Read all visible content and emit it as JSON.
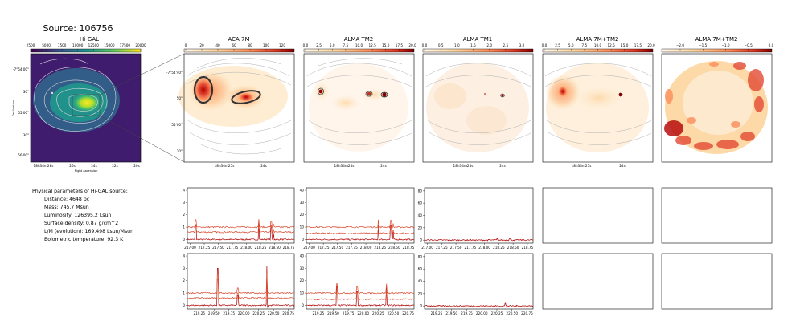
{
  "title": "Source: 106756",
  "maps": [
    {
      "title": "Hi-GAL",
      "cbar_ticks": [
        "2500",
        "5000",
        "7500",
        "10000",
        "12500",
        "15000",
        "17500",
        "20000"
      ],
      "colormap": "viridis",
      "ra_ticks": [
        "18h34m28s",
        "26s",
        "24s",
        "22s",
        "20s"
      ],
      "dec_ticks": [
        "-7°54'00\"",
        "30\"",
        "55'00\"",
        "30\"",
        "56'00\""
      ],
      "xlabel": "Right Ascension",
      "ylabel": "Declination"
    },
    {
      "title": "ACA 7M",
      "cbar_ticks": [
        "0",
        "20",
        "40",
        "60",
        "80",
        "100",
        "120"
      ],
      "colormap": "OrRd",
      "ra_ticks": [
        "18h34m25s",
        "24s"
      ],
      "dec_ticks": [
        "-7°54'40\"",
        "50\"",
        "55'00\"",
        "10\""
      ]
    },
    {
      "title": "ALMA TM2",
      "cbar_ticks": [
        "0.0",
        "2.5",
        "5.0",
        "7.5",
        "10.0",
        "12.5",
        "15.0",
        "17.5",
        "20.0"
      ],
      "colormap": "OrRd",
      "ra_ticks": [
        "18h34m25s",
        "24s"
      ]
    },
    {
      "title": "ALMA TM1",
      "cbar_ticks": [
        "0.0",
        "0.5",
        "1.0",
        "1.5",
        "2.0",
        "2.5",
        "3.0"
      ],
      "colormap": "OrRd",
      "ra_ticks": [
        "18h34m25s",
        "24s"
      ]
    },
    {
      "title": "ALMA 7M+TM2",
      "cbar_ticks": [
        "0.0",
        "2.5",
        "5.0",
        "7.5",
        "10.0",
        "12.5",
        "15.0",
        "17.5",
        "20.0"
      ],
      "colormap": "OrRd",
      "ra_ticks": [
        "18h34m25s",
        "24s"
      ]
    },
    {
      "title": "ALMA 7M+TM2",
      "cbar_ticks": [
        "−2.0",
        "−1.5",
        "−1.0",
        "−0.5",
        "0.0"
      ],
      "colormap": "OrRd"
    }
  ],
  "info": {
    "heading": "Physical parameters of Hi-GAL source:",
    "lines": [
      "Distance: 4648 pc",
      "Mass: 745.7 Msun",
      "Luminosity: 126395.2 Lsun",
      "Surface density: 0.87 g/cm^2",
      "L/M (evolution): 169.498 Lsun/Msun",
      "Bolometric temperature: 92.3 K"
    ]
  },
  "colors": {
    "spectrum_line": "#b00000",
    "offset_line": "#d94a2e",
    "contour": "#aaaaaa",
    "sources": "#333333"
  },
  "chart_data": [
    {
      "type": "line",
      "panel": "ACA 7M spw row 1",
      "x_ticks": [
        "217.00",
        "217.25",
        "217.50",
        "217.75",
        "218.00",
        "218.25",
        "218.50",
        "218.75"
      ],
      "y_ticks": [
        "0",
        "1",
        "2",
        "3",
        "4"
      ],
      "ylim": [
        -0.3,
        4.2
      ],
      "xlim": [
        216.95,
        218.85
      ],
      "baselines": [
        0,
        0.6,
        1.0
      ],
      "peaks": [
        [
          217.1,
          1.2
        ],
        [
          218.22,
          1.3
        ],
        [
          218.44,
          1.0
        ],
        [
          218.48,
          0.5
        ]
      ]
    },
    {
      "type": "line",
      "panel": "ALMA TM2 spw row 1",
      "x_ticks": [
        "217.00",
        "217.25",
        "217.50",
        "217.75",
        "218.00",
        "218.25",
        "218.50",
        "218.75"
      ],
      "y_ticks": [
        "0",
        "10",
        "20",
        "30",
        "40"
      ],
      "ylim": [
        -3,
        42
      ],
      "xlim": [
        216.95,
        218.85
      ],
      "baselines": [
        0,
        5,
        10
      ],
      "peaks": [
        [
          218.22,
          12
        ],
        [
          218.44,
          11
        ],
        [
          218.48,
          6
        ]
      ]
    },
    {
      "type": "line",
      "panel": "ALMA TM1 spw row 1",
      "x_ticks": [
        "217.00",
        "217.25",
        "217.50",
        "217.75",
        "218.00",
        "218.25",
        "218.50",
        "218.75"
      ],
      "y_ticks": [
        "0",
        "20",
        "40",
        "60",
        "80"
      ],
      "ylim": [
        -5,
        85
      ],
      "xlim": [
        216.95,
        218.85
      ],
      "baselines": [
        0
      ],
      "peaks": [
        [
          218.22,
          3
        ],
        [
          218.44,
          3
        ]
      ]
    },
    {
      "type": "line",
      "panel": "ACA 7M spw row 2",
      "x_ticks": [
        "219.25",
        "219.50",
        "219.75",
        "220.00",
        "220.25",
        "220.50",
        "220.75"
      ],
      "y_ticks": [
        "0",
        "1",
        "2",
        "3",
        "4"
      ],
      "ylim": [
        -0.3,
        4.2
      ],
      "xlim": [
        219.05,
        220.85
      ],
      "baselines": [
        0,
        0.6,
        1.0
      ],
      "peaks": [
        [
          219.56,
          3.0
        ],
        [
          219.9,
          0.8
        ],
        [
          220.39,
          3.2
        ],
        [
          220.4,
          -0.2
        ]
      ]
    },
    {
      "type": "line",
      "panel": "ALMA TM2 spw row 2",
      "x_ticks": [
        "219.25",
        "219.50",
        "219.75",
        "220.00",
        "220.25",
        "220.50",
        "220.75"
      ],
      "y_ticks": [
        "0",
        "10",
        "20",
        "30",
        "40"
      ],
      "ylim": [
        -3,
        42
      ],
      "xlim": [
        219.05,
        220.85
      ],
      "baselines": [
        0,
        5,
        10
      ],
      "peaks": [
        [
          219.56,
          15
        ],
        [
          219.9,
          11
        ],
        [
          220.39,
          15
        ]
      ]
    },
    {
      "type": "line",
      "panel": "ALMA TM1 spw row 2",
      "x_ticks": [
        "219.25",
        "219.50",
        "219.75",
        "220.00",
        "220.25",
        "220.50",
        "220.75"
      ],
      "y_ticks": [
        "0",
        "20",
        "40",
        "60",
        "80"
      ],
      "ylim": [
        -5,
        85
      ],
      "xlim": [
        219.05,
        220.85
      ],
      "baselines": [
        0
      ],
      "peaks": [
        [
          220.39,
          6
        ]
      ]
    }
  ]
}
